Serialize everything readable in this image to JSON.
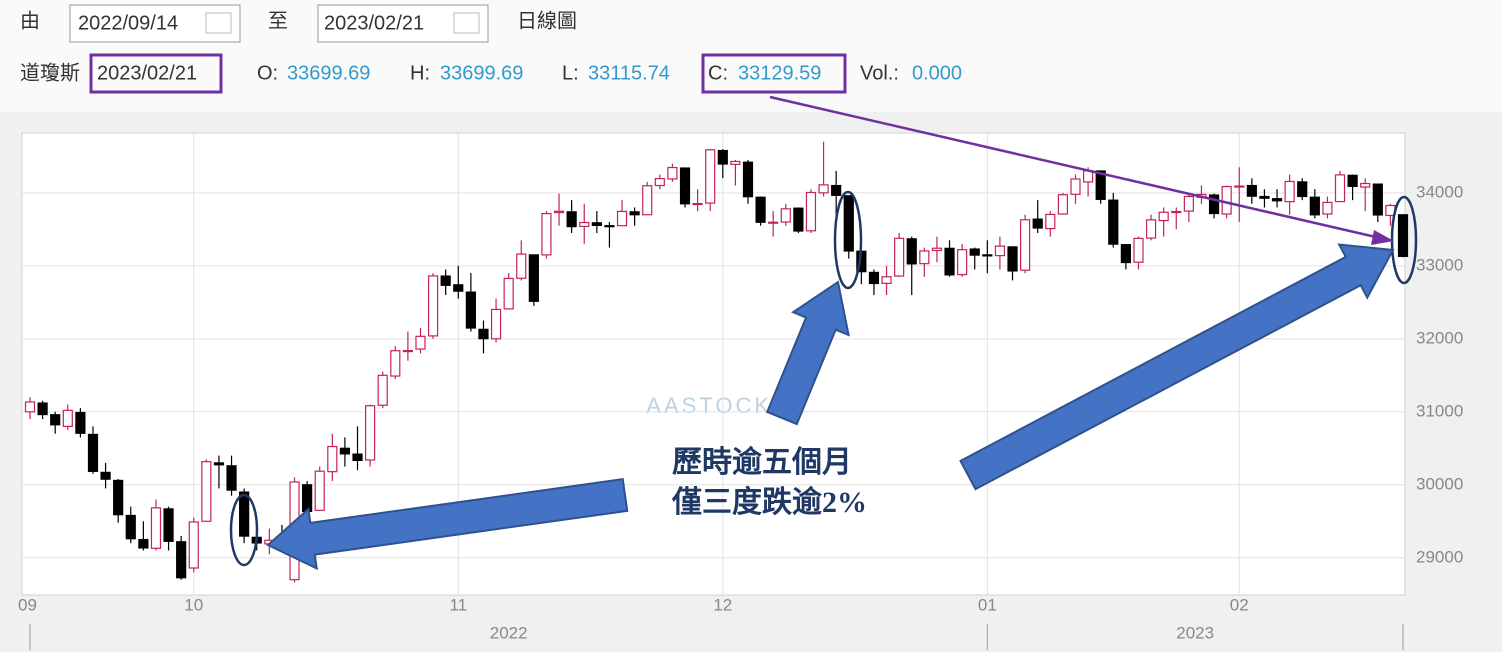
{
  "header": {
    "from_label": "由",
    "from_date": "2022/09/14",
    "to_label": "至",
    "to_date": "2023/02/21",
    "view": "日線圖",
    "index_name": "道瓊斯",
    "date": "2023/02/21",
    "quote": [
      {
        "label": "O:",
        "value": "33699.69"
      },
      {
        "label": "H:",
        "value": "33699.69"
      },
      {
        "label": "L:",
        "value": "33115.74"
      },
      {
        "label": "C:",
        "value": "33129.59"
      },
      {
        "label": "Vol.:",
        "value": "0.000"
      }
    ]
  },
  "chart_data": {
    "type": "candlestick",
    "watermark": "AASTOCKS",
    "annotation": [
      "歷時逾五個月",
      "僅三度跌逾2%"
    ],
    "categories": [
      "09",
      null,
      null,
      null,
      null,
      null,
      null,
      null,
      null,
      null,
      null,
      null,
      null,
      "10",
      null,
      null,
      null,
      null,
      null,
      null,
      null,
      null,
      null,
      null,
      null,
      null,
      null,
      null,
      null,
      null,
      null,
      null,
      null,
      null,
      "11",
      null,
      null,
      null,
      null,
      null,
      null,
      null,
      null,
      null,
      null,
      null,
      null,
      null,
      null,
      null,
      null,
      null,
      null,
      null,
      null,
      "12",
      null,
      null,
      null,
      null,
      null,
      null,
      null,
      null,
      null,
      null,
      null,
      null,
      null,
      null,
      null,
      null,
      null,
      null,
      null,
      null,
      "01",
      null,
      null,
      null,
      null,
      null,
      null,
      null,
      null,
      null,
      null,
      null,
      null,
      null,
      null,
      null,
      null,
      null,
      null,
      null,
      "02",
      null,
      null,
      null,
      null,
      null,
      null,
      null,
      null,
      null,
      null,
      null,
      null,
      null
    ],
    "years": [
      "2022",
      "2023"
    ],
    "open": [
      31000,
      31120,
      30960,
      30800,
      30990,
      30690,
      30170,
      30060,
      29580,
      29250,
      29130,
      29670,
      29220,
      28860,
      29500,
      30300,
      30260,
      29900,
      29280,
      29190,
      29230,
      28700,
      30000,
      29650,
      30180,
      30500,
      30420,
      30340,
      31090,
      31490,
      31830,
      31860,
      32040,
      32860,
      32740,
      32640,
      32130,
      32000,
      32410,
      32830,
      33150,
      33150,
      33730,
      33740,
      33540,
      33590,
      33550,
      33550,
      33740,
      33700,
      34100,
      34190,
      34340,
      33840,
      33860,
      34580,
      34390,
      34420,
      33940,
      33590,
      33600,
      33790,
      33480,
      34000,
      34100,
      33960,
      33200,
      32910,
      32760,
      32860,
      33370,
      33030,
      33210,
      33240,
      32880,
      33230,
      33150,
      33140,
      33260,
      32940,
      33640,
      33510,
      33710,
      33980,
      34150,
      34300,
      33900,
      33290,
      33050,
      33380,
      33620,
      33740,
      33750,
      33940,
      33970,
      33710,
      34080,
      34100,
      33950,
      33920,
      33880,
      34150,
      33940,
      33710,
      33880,
      34240,
      34080,
      34120,
      33690,
      33699.69
    ],
    "high": [
      31200,
      31150,
      31000,
      31100,
      31050,
      30800,
      30300,
      30080,
      29700,
      29500,
      29800,
      29700,
      29300,
      29550,
      30350,
      30400,
      30400,
      29950,
      29500,
      29400,
      29450,
      30100,
      30050,
      30250,
      30700,
      30650,
      30800,
      31100,
      31550,
      31900,
      32100,
      32150,
      32900,
      32950,
      33000,
      32900,
      32250,
      32550,
      32900,
      33350,
      33150,
      33750,
      33990,
      33900,
      33850,
      33750,
      33600,
      33900,
      33800,
      34150,
      34250,
      34400,
      34350,
      34050,
      34600,
      34600,
      34450,
      34450,
      33950,
      33750,
      33850,
      33800,
      34050,
      34700,
      34300,
      33950,
      33200,
      32950,
      33000,
      33450,
      33400,
      33250,
      33400,
      33350,
      33300,
      33250,
      33350,
      33400,
      33250,
      33700,
      33900,
      33750,
      34000,
      34250,
      34350,
      34300,
      34000,
      33300,
      33400,
      33700,
      33800,
      33800,
      34000,
      34100,
      33990,
      34100,
      34350,
      34200,
      34050,
      34050,
      34250,
      34200,
      34050,
      33950,
      34300,
      34250,
      34200,
      34120,
      33850,
      33699.69
    ],
    "low": [
      30900,
      30900,
      30700,
      30750,
      30650,
      30150,
      29950,
      29480,
      29200,
      29100,
      29100,
      29100,
      28700,
      28800,
      29500,
      29950,
      29850,
      29200,
      29100,
      29050,
      29150,
      28660,
      29550,
      29650,
      30050,
      30250,
      30200,
      30250,
      31050,
      31450,
      31700,
      31800,
      32000,
      32600,
      32550,
      32100,
      31800,
      31950,
      32400,
      32800,
      32450,
      33100,
      33550,
      33450,
      33300,
      33450,
      33250,
      33550,
      33550,
      33700,
      34050,
      34150,
      33800,
      33750,
      33750,
      34200,
      34100,
      33850,
      33550,
      33400,
      33550,
      33450,
      33450,
      33950,
      33700,
      33100,
      32750,
      32600,
      32600,
      32850,
      32600,
      32850,
      33050,
      32850,
      32850,
      32950,
      32900,
      32950,
      32800,
      32900,
      33450,
      33400,
      33700,
      33850,
      33950,
      33850,
      33250,
      32950,
      32950,
      33350,
      33400,
      33500,
      33600,
      33850,
      33650,
      33650,
      33600,
      33850,
      33800,
      33800,
      33700,
      33900,
      33650,
      33650,
      33900,
      33900,
      33750,
      33600,
      33550,
      33115.74
    ],
    "close": [
      31135,
      30962,
      30822,
      31020,
      30706,
      30184,
      30077,
      29590,
      29261,
      29135,
      29684,
      29226,
      28726,
      29491,
      30317,
      30274,
      29927,
      29297,
      29203,
      29240,
      29211,
      30039,
      29635,
      30186,
      30524,
      30424,
      30334,
      31083,
      31500,
      31837,
      31839,
      32034,
      32862,
      32733,
      32653,
      32148,
      32002,
      32403,
      32827,
      33161,
      32514,
      33716,
      33748,
      33537,
      33593,
      33554,
      33546,
      33746,
      33700,
      34098,
      34195,
      34347,
      33850,
      33853,
      34590,
      34395,
      34430,
      33947,
      33597,
      33598,
      33781,
      33477,
      34005,
      34109,
      33966,
      33203,
      32920,
      32758,
      32850,
      33377,
      33027,
      33204,
      33241,
      32876,
      33221,
      33147,
      33136,
      33270,
      32930,
      33631,
      33518,
      33704,
      33974,
      34190,
      34303,
      33911,
      33297,
      33045,
      33376,
      33630,
      33734,
      33744,
      33950,
      33978,
      33717,
      34086,
      34093,
      33954,
      33926,
      33891,
      34156,
      33950,
      33699,
      33869,
      34246,
      34089,
      34128,
      33697,
      33827,
      33129.59
    ],
    "up_color": "#c3235a",
    "down_color": "#000000",
    "ylim": [
      28490,
      34820
    ],
    "yticks": [
      29000,
      30000,
      31000,
      32000,
      33000,
      34000
    ],
    "grid": true
  }
}
